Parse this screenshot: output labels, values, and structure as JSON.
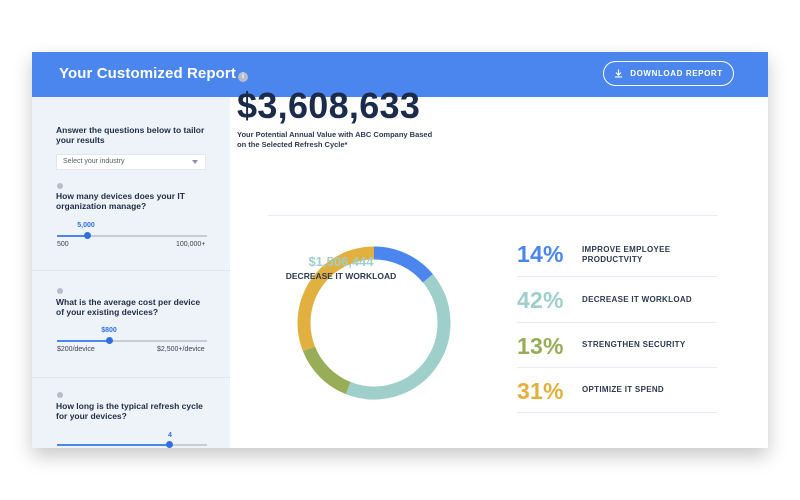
{
  "header": {
    "title": "Your Customized Report",
    "download_label": "DOWNLOAD REPORT"
  },
  "sidebar": {
    "intro": "Answer the questions below to tailor your results",
    "industry_select": {
      "value": "Select your industry"
    },
    "questions": [
      {
        "text": "How many devices does your IT organization manage?",
        "value_label": "5,000",
        "min_label": "500",
        "max_label": "100,000+",
        "level": 0.2
      },
      {
        "text": "What is the average cost per device of your existing devices?",
        "value_label": "$800",
        "min_label": "$200/device",
        "max_label": "$2,500+/device",
        "level": 0.35
      },
      {
        "text": "How long is the typical refresh cycle for your devices?",
        "value_label": "4",
        "min_label": "",
        "max_label": "",
        "level": 0.75
      }
    ]
  },
  "main": {
    "total": "$3,608,633",
    "subtitle": "Your Potential Annual Value with ABC Company Based on the Selected Refresh Cycle*",
    "info_icon": "i",
    "donut": {
      "center_value": "$1,506,444",
      "center_label": "DECREASE IT WORKLOAD"
    },
    "breakdown": [
      {
        "pct": "14%",
        "label": "IMPROVE EMPLOYEE PRODUCTVITY",
        "value": 14,
        "color": "#4a86ee"
      },
      {
        "pct": "42%",
        "label": "DECREASE IT WORKLOAD",
        "value": 42,
        "color": "#9ecfca"
      },
      {
        "pct": "13%",
        "label": "STRENGTHEN SECURITY",
        "value": 13,
        "color": "#98ad58"
      },
      {
        "pct": "31%",
        "label": "OPTIMIZE IT SPEND",
        "value": 31,
        "color": "#e2b03e"
      }
    ]
  },
  "icons": {
    "download": "download-icon",
    "info": "info-icon",
    "caret": "chevron-down-icon"
  }
}
